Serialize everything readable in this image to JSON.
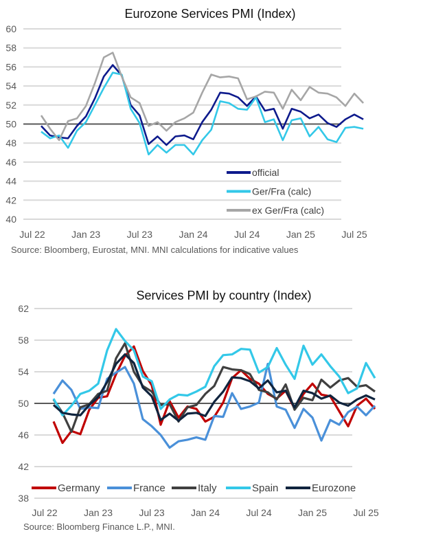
{
  "chart_data": [
    {
      "type": "line",
      "title": "Eurozone Services PMI (Index)",
      "xlabel": "",
      "ylabel": "",
      "ylim": [
        40,
        60
      ],
      "yticks": [
        "40",
        "42",
        "44",
        "46",
        "48",
        "50",
        "52",
        "54",
        "56",
        "58",
        "60"
      ],
      "xticks": [
        "Jul 22",
        "Jan 23",
        "Jul 23",
        "Jan 24",
        "Jul 24",
        "Jan 25",
        "Jul 25"
      ],
      "x": [
        "Aug 22",
        "Sep 22",
        "Oct 22",
        "Nov 22",
        "Dec 22",
        "Jan 23",
        "Feb 23",
        "Mar 23",
        "Apr 23",
        "May 23",
        "Jun 23",
        "Jul 23",
        "Aug 23",
        "Sep 23",
        "Oct 23",
        "Nov 23",
        "Dec 23",
        "Jan 24",
        "Feb 24",
        "Mar 24",
        "Apr 24",
        "May 24",
        "Jun 24",
        "Jul 24",
        "Aug 24",
        "Sep 24",
        "Oct 24",
        "Nov 24",
        "Dec 24",
        "Jan 25",
        "Feb 25",
        "Mar 25",
        "Apr 25",
        "May 25",
        "Jun 25",
        "Jul 25",
        "Aug 25"
      ],
      "reference_line": 50,
      "grid": true,
      "legend_position": "bottom-right",
      "series": [
        {
          "name": "official",
          "color": "#0d1a8c",
          "values": [
            49.8,
            48.8,
            48.6,
            48.5,
            49.8,
            50.8,
            52.7,
            55.0,
            56.2,
            55.1,
            52.0,
            50.9,
            47.9,
            48.7,
            47.8,
            48.7,
            48.8,
            48.4,
            50.2,
            51.5,
            53.3,
            53.2,
            52.8,
            51.9,
            52.9,
            51.4,
            51.6,
            49.5,
            51.6,
            51.3,
            50.6,
            51.0,
            50.1,
            49.7,
            50.5,
            51.0,
            50.5
          ]
        },
        {
          "name": "Ger/Fra (calc)",
          "color": "#33c8e8",
          "values": [
            49.2,
            48.5,
            48.8,
            47.5,
            49.3,
            50.2,
            52.0,
            53.8,
            55.4,
            55.2,
            51.6,
            50.1,
            46.8,
            47.8,
            47.0,
            47.8,
            47.8,
            46.8,
            48.3,
            49.4,
            52.4,
            52.2,
            51.6,
            51.5,
            52.8,
            50.2,
            50.5,
            48.3,
            50.4,
            50.6,
            48.7,
            49.7,
            48.4,
            48.1,
            49.6,
            49.7,
            49.5
          ]
        },
        {
          "name": "ex Ger/Fra (calc)",
          "color": "#a6a6a6",
          "values": [
            50.9,
            49.5,
            48.3,
            50.3,
            50.6,
            51.9,
            54.3,
            57.0,
            57.5,
            55.0,
            52.8,
            52.2,
            49.8,
            50.2,
            49.3,
            50.2,
            50.6,
            51.2,
            53.3,
            55.2,
            54.9,
            55.0,
            54.8,
            52.6,
            52.9,
            53.4,
            53.3,
            51.6,
            53.6,
            52.5,
            53.9,
            53.3,
            53.2,
            52.8,
            51.9,
            53.2,
            52.2
          ]
        }
      ],
      "source": "Source: Bloomberg, Eurostat, MNI.  MNI calculations for indicative values"
    },
    {
      "type": "line",
      "title": "Services PMI by country (Index)",
      "xlabel": "",
      "ylabel": "",
      "ylim": [
        38,
        62
      ],
      "yticks": [
        "38",
        "42",
        "46",
        "50",
        "54",
        "58",
        "62"
      ],
      "xticks": [
        "Jul 22",
        "Jan 23",
        "Jul 23",
        "Jan 24",
        "Jul 24",
        "Jan 25",
        "Jul 25"
      ],
      "x": [
        "Aug 22",
        "Sep 22",
        "Oct 22",
        "Nov 22",
        "Dec 22",
        "Jan 23",
        "Feb 23",
        "Mar 23",
        "Apr 23",
        "May 23",
        "Jun 23",
        "Jul 23",
        "Aug 23",
        "Sep 23",
        "Oct 23",
        "Nov 23",
        "Dec 23",
        "Jan 24",
        "Feb 24",
        "Mar 24",
        "Apr 24",
        "May 24",
        "Jun 24",
        "Jul 24",
        "Aug 24",
        "Sep 24",
        "Oct 24",
        "Nov 24",
        "Dec 24",
        "Jan 25",
        "Feb 25",
        "Mar 25",
        "Apr 25",
        "May 25",
        "Jun 25",
        "Jul 25",
        "Aug 25"
      ],
      "reference_line": 50,
      "grid": true,
      "legend_position": "bottom",
      "series": [
        {
          "name": "Germany",
          "color": "#c00000",
          "values": [
            47.7,
            45.0,
            46.5,
            46.1,
            49.2,
            50.7,
            50.9,
            53.7,
            56.0,
            57.2,
            54.1,
            52.3,
            47.3,
            50.3,
            48.2,
            49.6,
            49.3,
            47.7,
            48.3,
            50.1,
            53.2,
            54.2,
            53.1,
            52.5,
            51.2,
            50.6,
            51.6,
            49.3,
            51.2,
            52.5,
            51.1,
            50.9,
            49.0,
            47.1,
            49.7,
            50.6,
            49.3
          ]
        },
        {
          "name": "France",
          "color": "#4a90d9",
          "values": [
            51.2,
            52.9,
            51.7,
            49.3,
            49.5,
            49.4,
            53.1,
            53.9,
            54.6,
            52.5,
            48.0,
            47.1,
            46.0,
            44.4,
            45.2,
            45.4,
            45.7,
            45.4,
            48.4,
            48.3,
            51.3,
            49.3,
            49.6,
            50.1,
            55.0,
            49.6,
            49.2,
            46.9,
            49.3,
            48.2,
            45.3,
            47.9,
            47.3,
            48.9,
            49.6,
            48.5,
            49.7
          ]
        },
        {
          "name": "Italy",
          "color": "#404040",
          "values": [
            50.5,
            48.8,
            46.4,
            49.5,
            49.9,
            51.2,
            51.6,
            55.7,
            57.6,
            54.0,
            52.2,
            51.5,
            49.8,
            49.9,
            47.7,
            49.5,
            49.8,
            51.2,
            52.2,
            54.6,
            54.3,
            54.2,
            53.7,
            51.7,
            51.4,
            50.5,
            52.4,
            49.2,
            50.7,
            50.4,
            53.0,
            52.0,
            52.9,
            53.2,
            52.1,
            52.3,
            51.5
          ]
        },
        {
          "name": "Spain",
          "color": "#33c8e8",
          "values": [
            50.6,
            48.5,
            49.7,
            51.2,
            51.6,
            52.5,
            56.7,
            59.4,
            57.9,
            56.7,
            53.4,
            52.8,
            49.3,
            50.5,
            51.1,
            51.0,
            51.5,
            52.1,
            54.7,
            56.1,
            56.2,
            56.9,
            56.8,
            53.9,
            54.6,
            57.0,
            54.9,
            53.1,
            57.3,
            54.9,
            56.2,
            54.7,
            53.4,
            51.3,
            51.9,
            55.1,
            53.2
          ]
        },
        {
          "name": "Eurozone",
          "color": "#10243e",
          "values": [
            49.8,
            48.8,
            48.6,
            48.5,
            49.8,
            50.8,
            52.7,
            55.0,
            56.2,
            55.1,
            52.0,
            50.9,
            47.9,
            48.7,
            47.8,
            48.7,
            48.8,
            48.4,
            50.2,
            51.5,
            53.3,
            53.2,
            52.8,
            51.9,
            52.9,
            51.4,
            51.6,
            49.5,
            51.6,
            51.3,
            50.6,
            51.0,
            50.1,
            49.7,
            50.5,
            51.0,
            50.5
          ]
        }
      ],
      "source": "Source: Bloomberg Finance L.P., MNI."
    }
  ]
}
